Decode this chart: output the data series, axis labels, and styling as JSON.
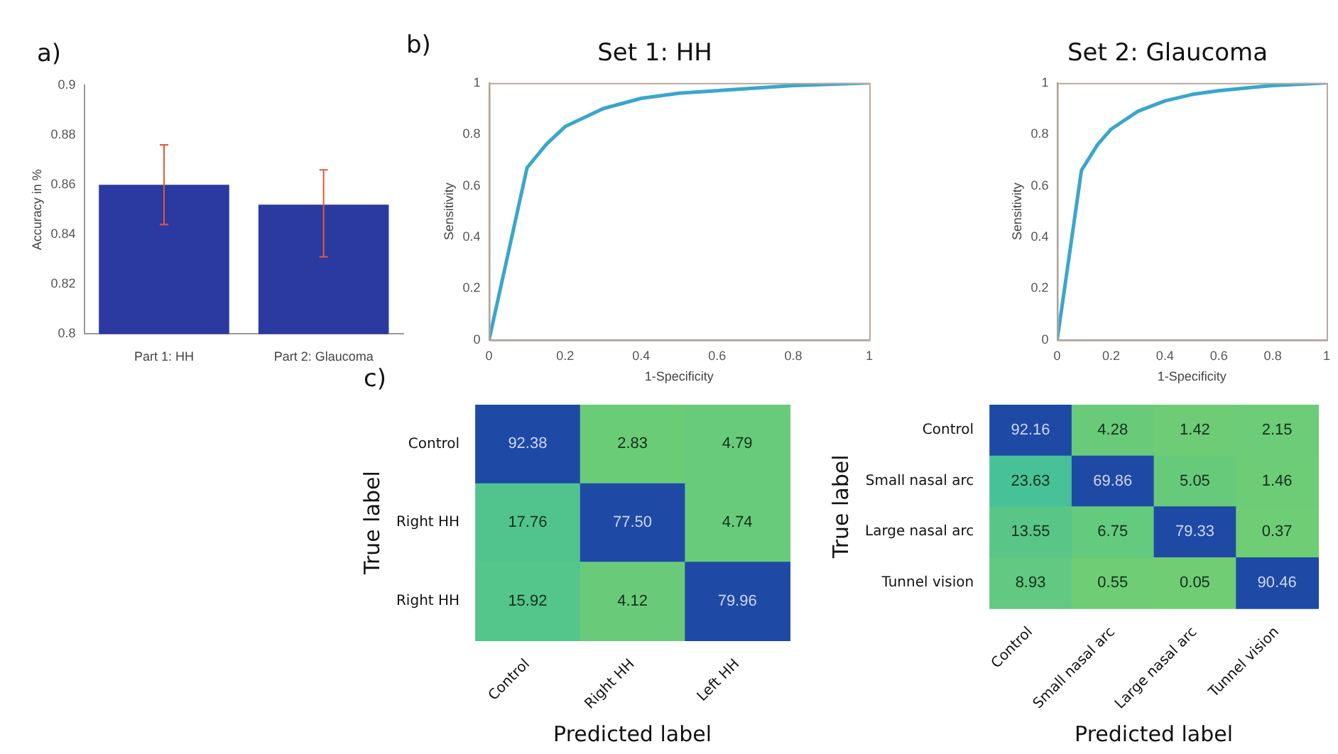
{
  "chart_data": [
    {
      "type": "bar",
      "categories": [
        "Part 1: HH",
        "Part 2: Glaucoma"
      ],
      "values": [
        0.86,
        0.852
      ],
      "errors": [
        [
          0.844,
          0.876
        ],
        [
          0.831,
          0.866
        ]
      ],
      "color": "#2b3aa0",
      "ylabel": "Accuracy in %",
      "ylim": [
        0.8,
        0.9
      ],
      "yticks": [
        0.8,
        0.82,
        0.84,
        0.86,
        0.88,
        0.9
      ],
      "grid": false,
      "legend": false,
      "annotations": [
        "a)"
      ]
    },
    {
      "type": "line",
      "title": "Set 1: HH",
      "xlabel": "1-Specificity",
      "ylabel": "Sensitivity",
      "series": [
        {
          "color": "#3aa6cc",
          "x": [
            0,
            0.1,
            0.15,
            0.2,
            0.3,
            0.4,
            0.5,
            0.6,
            0.8,
            1
          ],
          "values": [
            0,
            0.67,
            0.76,
            0.83,
            0.9,
            0.94,
            0.96,
            0.97,
            0.99,
            1
          ]
        }
      ],
      "xlim": [
        0,
        1
      ],
      "xticks": [
        0,
        0.2,
        0.4,
        0.6,
        0.8,
        1
      ],
      "ylim": [
        0,
        1
      ],
      "yticks": [
        0,
        0.2,
        0.4,
        0.6,
        0.8,
        1
      ],
      "grid": false,
      "legend": false,
      "marker": "none",
      "line_style": "solid",
      "annotations": [
        "b)"
      ]
    },
    {
      "type": "line",
      "title": "Set 2: Glaucoma",
      "xlabel": "1-Specificity",
      "ylabel": "Sensitivity",
      "series": [
        {
          "color": "#3aa6cc",
          "x": [
            0,
            0.09,
            0.15,
            0.2,
            0.3,
            0.4,
            0.5,
            0.6,
            0.8,
            1
          ],
          "values": [
            0,
            0.66,
            0.76,
            0.82,
            0.89,
            0.93,
            0.955,
            0.97,
            0.99,
            1
          ]
        }
      ],
      "xlim": [
        0,
        1
      ],
      "xticks": [
        0,
        0.2,
        0.4,
        0.6,
        0.8,
        1
      ],
      "ylim": [
        0,
        1
      ],
      "yticks": [
        0,
        0.2,
        0.4,
        0.6,
        0.8,
        1
      ],
      "grid": false,
      "legend": false,
      "marker": "none",
      "line_style": "solid"
    },
    {
      "type": "heatmap",
      "xlabel": "Predicted label",
      "ylabel": "True label",
      "categories": [
        "Control",
        "Right HH",
        "Left HH"
      ],
      "y_categories": [
        "Control",
        "Right HH",
        "Right HH"
      ],
      "cells": [
        [
          92.38,
          2.83,
          4.79
        ],
        [
          17.76,
          77.5,
          4.74
        ],
        [
          15.92,
          4.12,
          79.96
        ]
      ],
      "cell_labels": [
        [
          "92.38",
          "2.83",
          "4.79"
        ],
        [
          "17.76",
          "77.50",
          "4.74"
        ],
        [
          "15.92",
          "4.12",
          "79.96"
        ]
      ],
      "data_labels": true,
      "annotations": [
        "c)"
      ]
    },
    {
      "type": "heatmap",
      "xlabel": "Predicted label",
      "ylabel": "True label",
      "categories": [
        "Control",
        "Small nasal arc",
        "Large nasal arc",
        "Tunnel vision"
      ],
      "y_categories": [
        "Control",
        "Small nasal arc",
        "Large nasal arc",
        "Tunnel vision"
      ],
      "cells": [
        [
          92.16,
          4.28,
          1.42,
          2.15
        ],
        [
          23.63,
          69.86,
          5.05,
          1.46
        ],
        [
          13.55,
          6.75,
          79.33,
          0.37
        ],
        [
          8.93,
          0.55,
          0.05,
          90.46
        ]
      ],
      "data_labels": true
    }
  ]
}
